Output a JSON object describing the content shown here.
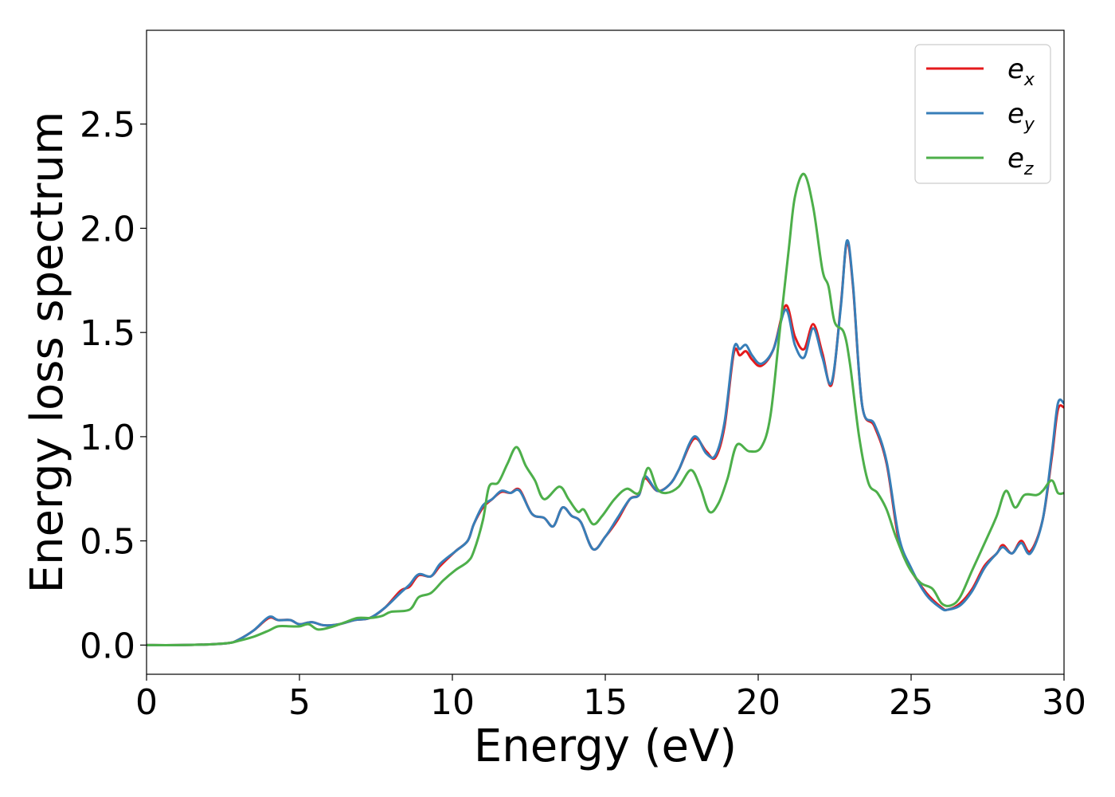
{
  "chart_data": {
    "type": "line",
    "xlabel": "Energy (eV)",
    "ylabel": "Energy loss spectrum",
    "xlim": [
      0,
      30
    ],
    "ylim": [
      -0.14,
      2.95
    ],
    "grid": false,
    "legend_position": "top-right",
    "x_ticks": [
      "0",
      "5",
      "10",
      "15",
      "20",
      "25",
      "30"
    ],
    "y_ticks": [
      "0.0",
      "0.5",
      "1.0",
      "1.5",
      "2.0",
      "2.5"
    ],
    "series": [
      {
        "name": "e_x",
        "legend_base": "e",
        "legend_sub": "x",
        "color": "#e41a1c",
        "points": [
          [
            0,
            0
          ],
          [
            1,
            0
          ],
          [
            2,
            0.003
          ],
          [
            2.7,
            0.01
          ],
          [
            3,
            0.025
          ],
          [
            3.5,
            0.07
          ],
          [
            4,
            0.13
          ],
          [
            4.3,
            0.12
          ],
          [
            4.7,
            0.12
          ],
          [
            5,
            0.1
          ],
          [
            5.4,
            0.11
          ],
          [
            5.8,
            0.095
          ],
          [
            6.3,
            0.1
          ],
          [
            6.8,
            0.12
          ],
          [
            7.3,
            0.13
          ],
          [
            7.8,
            0.18
          ],
          [
            8.3,
            0.26
          ],
          [
            8.6,
            0.28
          ],
          [
            8.9,
            0.335
          ],
          [
            9.3,
            0.33
          ],
          [
            9.6,
            0.38
          ],
          [
            10.1,
            0.45
          ],
          [
            10.5,
            0.5
          ],
          [
            10.7,
            0.58
          ],
          [
            11,
            0.66
          ],
          [
            11.3,
            0.7
          ],
          [
            11.6,
            0.735
          ],
          [
            11.9,
            0.73
          ],
          [
            12.2,
            0.745
          ],
          [
            12.6,
            0.63
          ],
          [
            13,
            0.61
          ],
          [
            13.3,
            0.57
          ],
          [
            13.6,
            0.66
          ],
          [
            13.9,
            0.62
          ],
          [
            14.2,
            0.59
          ],
          [
            14.6,
            0.46
          ],
          [
            15,
            0.52
          ],
          [
            15.4,
            0.6
          ],
          [
            15.8,
            0.7
          ],
          [
            16.1,
            0.72
          ],
          [
            16.3,
            0.8
          ],
          [
            16.7,
            0.74
          ],
          [
            17.1,
            0.77
          ],
          [
            17.4,
            0.84
          ],
          [
            17.9,
            0.99
          ],
          [
            18.3,
            0.93
          ],
          [
            18.6,
            0.9
          ],
          [
            18.9,
            1.05
          ],
          [
            19.2,
            1.4
          ],
          [
            19.4,
            1.39
          ],
          [
            19.6,
            1.41
          ],
          [
            19.8,
            1.37
          ],
          [
            20.1,
            1.34
          ],
          [
            20.5,
            1.42
          ],
          [
            20.9,
            1.63
          ],
          [
            21.2,
            1.48
          ],
          [
            21.5,
            1.42
          ],
          [
            21.8,
            1.54
          ],
          [
            22.1,
            1.4
          ],
          [
            22.4,
            1.25
          ],
          [
            22.7,
            1.63
          ],
          [
            22.9,
            1.93
          ],
          [
            23.1,
            1.72
          ],
          [
            23.4,
            1.15
          ],
          [
            23.8,
            1.05
          ],
          [
            24.2,
            0.87
          ],
          [
            24.6,
            0.5
          ],
          [
            25,
            0.36
          ],
          [
            25.5,
            0.25
          ],
          [
            26,
            0.18
          ],
          [
            26.2,
            0.17
          ],
          [
            26.6,
            0.2
          ],
          [
            27,
            0.27
          ],
          [
            27.4,
            0.38
          ],
          [
            27.8,
            0.44
          ],
          [
            28,
            0.48
          ],
          [
            28.3,
            0.44
          ],
          [
            28.6,
            0.5
          ],
          [
            28.9,
            0.45
          ],
          [
            29.3,
            0.6
          ],
          [
            29.6,
            0.9
          ],
          [
            29.8,
            1.13
          ],
          [
            30,
            1.14
          ]
        ]
      },
      {
        "name": "e_y",
        "legend_base": "e",
        "legend_sub": "y",
        "color": "#377eb8",
        "points": [
          [
            0,
            0
          ],
          [
            1,
            0
          ],
          [
            2,
            0.003
          ],
          [
            2.7,
            0.01
          ],
          [
            3,
            0.025
          ],
          [
            3.5,
            0.07
          ],
          [
            4,
            0.135
          ],
          [
            4.3,
            0.12
          ],
          [
            4.7,
            0.12
          ],
          [
            5,
            0.1
          ],
          [
            5.4,
            0.11
          ],
          [
            5.8,
            0.095
          ],
          [
            6.3,
            0.1
          ],
          [
            6.8,
            0.12
          ],
          [
            7.3,
            0.13
          ],
          [
            7.8,
            0.18
          ],
          [
            8.3,
            0.25
          ],
          [
            8.6,
            0.29
          ],
          [
            8.9,
            0.34
          ],
          [
            9.3,
            0.33
          ],
          [
            9.6,
            0.39
          ],
          [
            10.1,
            0.45
          ],
          [
            10.5,
            0.5
          ],
          [
            10.7,
            0.58
          ],
          [
            11,
            0.67
          ],
          [
            11.3,
            0.7
          ],
          [
            11.6,
            0.74
          ],
          [
            11.9,
            0.73
          ],
          [
            12.2,
            0.74
          ],
          [
            12.6,
            0.63
          ],
          [
            13,
            0.61
          ],
          [
            13.3,
            0.57
          ],
          [
            13.6,
            0.66
          ],
          [
            13.9,
            0.62
          ],
          [
            14.2,
            0.59
          ],
          [
            14.6,
            0.46
          ],
          [
            15,
            0.52
          ],
          [
            15.4,
            0.61
          ],
          [
            15.8,
            0.7
          ],
          [
            16.1,
            0.72
          ],
          [
            16.3,
            0.81
          ],
          [
            16.7,
            0.74
          ],
          [
            17.1,
            0.77
          ],
          [
            17.4,
            0.84
          ],
          [
            17.9,
            1.0
          ],
          [
            18.3,
            0.92
          ],
          [
            18.6,
            0.91
          ],
          [
            18.9,
            1.07
          ],
          [
            19.2,
            1.42
          ],
          [
            19.4,
            1.42
          ],
          [
            19.6,
            1.44
          ],
          [
            19.8,
            1.39
          ],
          [
            20.1,
            1.35
          ],
          [
            20.5,
            1.42
          ],
          [
            20.9,
            1.61
          ],
          [
            21.2,
            1.44
          ],
          [
            21.5,
            1.38
          ],
          [
            21.8,
            1.52
          ],
          [
            22.1,
            1.38
          ],
          [
            22.4,
            1.26
          ],
          [
            22.7,
            1.62
          ],
          [
            22.9,
            1.94
          ],
          [
            23.1,
            1.73
          ],
          [
            23.4,
            1.15
          ],
          [
            23.8,
            1.06
          ],
          [
            24.2,
            0.88
          ],
          [
            24.6,
            0.52
          ],
          [
            25,
            0.37
          ],
          [
            25.5,
            0.24
          ],
          [
            26,
            0.175
          ],
          [
            26.2,
            0.17
          ],
          [
            26.6,
            0.19
          ],
          [
            27,
            0.26
          ],
          [
            27.4,
            0.37
          ],
          [
            27.8,
            0.44
          ],
          [
            28,
            0.47
          ],
          [
            28.3,
            0.44
          ],
          [
            28.6,
            0.49
          ],
          [
            28.9,
            0.44
          ],
          [
            29.3,
            0.6
          ],
          [
            29.6,
            0.92
          ],
          [
            29.8,
            1.16
          ],
          [
            30,
            1.16
          ]
        ]
      },
      {
        "name": "e_z",
        "legend_base": "e",
        "legend_sub": "z",
        "color": "#4daf4a",
        "points": [
          [
            0,
            0
          ],
          [
            1,
            0
          ],
          [
            2,
            0.003
          ],
          [
            2.7,
            0.01
          ],
          [
            3,
            0.02
          ],
          [
            3.5,
            0.04
          ],
          [
            4,
            0.07
          ],
          [
            4.3,
            0.09
          ],
          [
            4.7,
            0.09
          ],
          [
            5,
            0.09
          ],
          [
            5.3,
            0.1
          ],
          [
            5.6,
            0.075
          ],
          [
            6,
            0.085
          ],
          [
            6.5,
            0.11
          ],
          [
            6.9,
            0.13
          ],
          [
            7.3,
            0.13
          ],
          [
            7.7,
            0.14
          ],
          [
            8,
            0.16
          ],
          [
            8.6,
            0.17
          ],
          [
            8.9,
            0.23
          ],
          [
            9.3,
            0.25
          ],
          [
            9.7,
            0.31
          ],
          [
            10.1,
            0.36
          ],
          [
            10.5,
            0.4
          ],
          [
            10.7,
            0.45
          ],
          [
            11,
            0.6
          ],
          [
            11.2,
            0.76
          ],
          [
            11.5,
            0.78
          ],
          [
            11.8,
            0.87
          ],
          [
            12.1,
            0.95
          ],
          [
            12.4,
            0.86
          ],
          [
            12.7,
            0.79
          ],
          [
            13,
            0.7
          ],
          [
            13.5,
            0.76
          ],
          [
            13.8,
            0.7
          ],
          [
            14.1,
            0.64
          ],
          [
            14.3,
            0.65
          ],
          [
            14.6,
            0.58
          ],
          [
            14.9,
            0.62
          ],
          [
            15.3,
            0.7
          ],
          [
            15.7,
            0.75
          ],
          [
            16.1,
            0.73
          ],
          [
            16.4,
            0.85
          ],
          [
            16.7,
            0.75
          ],
          [
            17,
            0.73
          ],
          [
            17.4,
            0.76
          ],
          [
            17.8,
            0.84
          ],
          [
            18.1,
            0.76
          ],
          [
            18.4,
            0.64
          ],
          [
            18.7,
            0.68
          ],
          [
            19,
            0.8
          ],
          [
            19.3,
            0.96
          ],
          [
            19.7,
            0.93
          ],
          [
            20.1,
            0.95
          ],
          [
            20.4,
            1.1
          ],
          [
            20.7,
            1.5
          ],
          [
            21,
            1.9
          ],
          [
            21.2,
            2.15
          ],
          [
            21.5,
            2.26
          ],
          [
            21.8,
            2.1
          ],
          [
            22.1,
            1.8
          ],
          [
            22.3,
            1.72
          ],
          [
            22.5,
            1.55
          ],
          [
            22.8,
            1.5
          ],
          [
            23,
            1.35
          ],
          [
            23.3,
            1.0
          ],
          [
            23.6,
            0.78
          ],
          [
            23.9,
            0.73
          ],
          [
            24.2,
            0.65
          ],
          [
            24.5,
            0.52
          ],
          [
            24.9,
            0.38
          ],
          [
            25.3,
            0.3
          ],
          [
            25.7,
            0.27
          ],
          [
            26,
            0.2
          ],
          [
            26.3,
            0.19
          ],
          [
            26.6,
            0.23
          ],
          [
            27,
            0.36
          ],
          [
            27.5,
            0.52
          ],
          [
            27.8,
            0.62
          ],
          [
            28.1,
            0.74
          ],
          [
            28.4,
            0.66
          ],
          [
            28.7,
            0.72
          ],
          [
            29.1,
            0.72
          ],
          [
            29.3,
            0.74
          ],
          [
            29.6,
            0.79
          ],
          [
            29.8,
            0.73
          ],
          [
            30,
            0.73
          ]
        ]
      }
    ]
  }
}
